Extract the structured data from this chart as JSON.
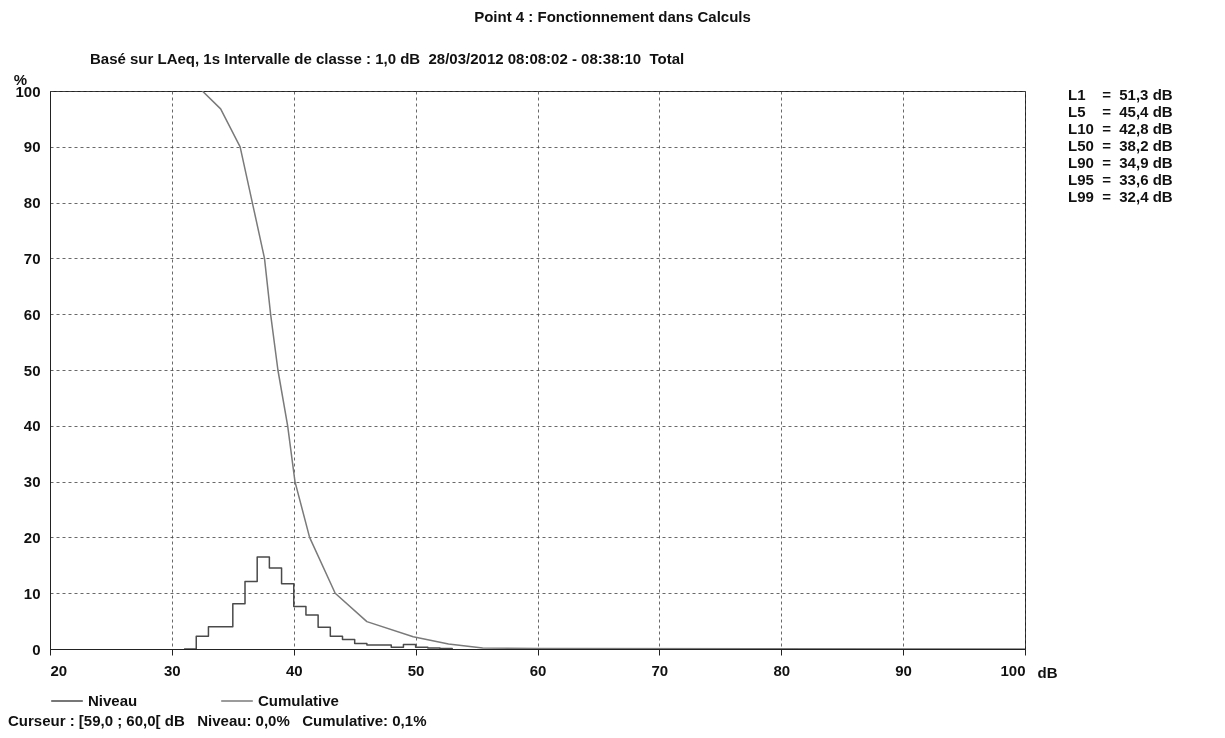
{
  "chart_data": {
    "type": "line",
    "title": "Point 4 : Fonctionnement dans Calculs",
    "subtitle": "Basé sur LAeq, 1s Intervalle de classe : 1,0 dB  28/03/2012 08:08:02 - 08:38:10  Total",
    "xlabel": "dB",
    "ylabel": "%",
    "series": [
      {
        "name": "Niveau",
        "type": "step",
        "color": "#4a4a4a",
        "x": [
          31,
          32,
          33,
          34,
          35,
          36,
          37,
          38,
          39,
          40,
          41,
          42,
          43,
          44,
          45,
          46,
          47,
          48,
          49,
          50,
          51,
          52,
          53
        ],
        "values": [
          0,
          2.3,
          4.0,
          4.0,
          8.1,
          12.1,
          16.5,
          14.5,
          11.7,
          7.6,
          6.1,
          3.9,
          2.3,
          1.7,
          1.0,
          0.7,
          0.7,
          0.3,
          0.8,
          0.3,
          0.2,
          0.1,
          0
        ]
      },
      {
        "name": "Cumulative",
        "color": "#7a7a7a",
        "x": [
          32.5,
          34.0,
          35.6,
          36.6,
          37.6,
          38.1,
          38.7,
          39.5,
          40.1,
          41.3,
          43.4,
          46.0,
          49.8,
          52.7,
          55.5,
          60,
          100
        ],
        "values": [
          100,
          96.8,
          90,
          80,
          70,
          60,
          50,
          40,
          30,
          20,
          10,
          4.9,
          2.2,
          0.9,
          0.2,
          0.1,
          0
        ]
      }
    ],
    "xlim": [
      20,
      100
    ],
    "xticks": [
      20,
      30,
      40,
      50,
      60,
      70,
      80,
      90,
      100
    ],
    "ylim": [
      0,
      100
    ],
    "yticks": [
      0,
      10,
      20,
      30,
      40,
      50,
      60,
      70,
      80,
      90,
      100
    ],
    "grid": true,
    "legend": "bottom",
    "annotations": [
      "L1    =  51,3 dB",
      "L5    =  45,4 dB",
      "L10  =  42,8 dB",
      "L50  =  38,2 dB",
      "L90  =  34,9 dB",
      "L95  =  33,6 dB",
      "L99  =  32,4 dB",
      "Curseur : [59,0 ; 60,0[ dB   Niveau: 0,0%   Cumulative: 0,1%"
    ]
  }
}
